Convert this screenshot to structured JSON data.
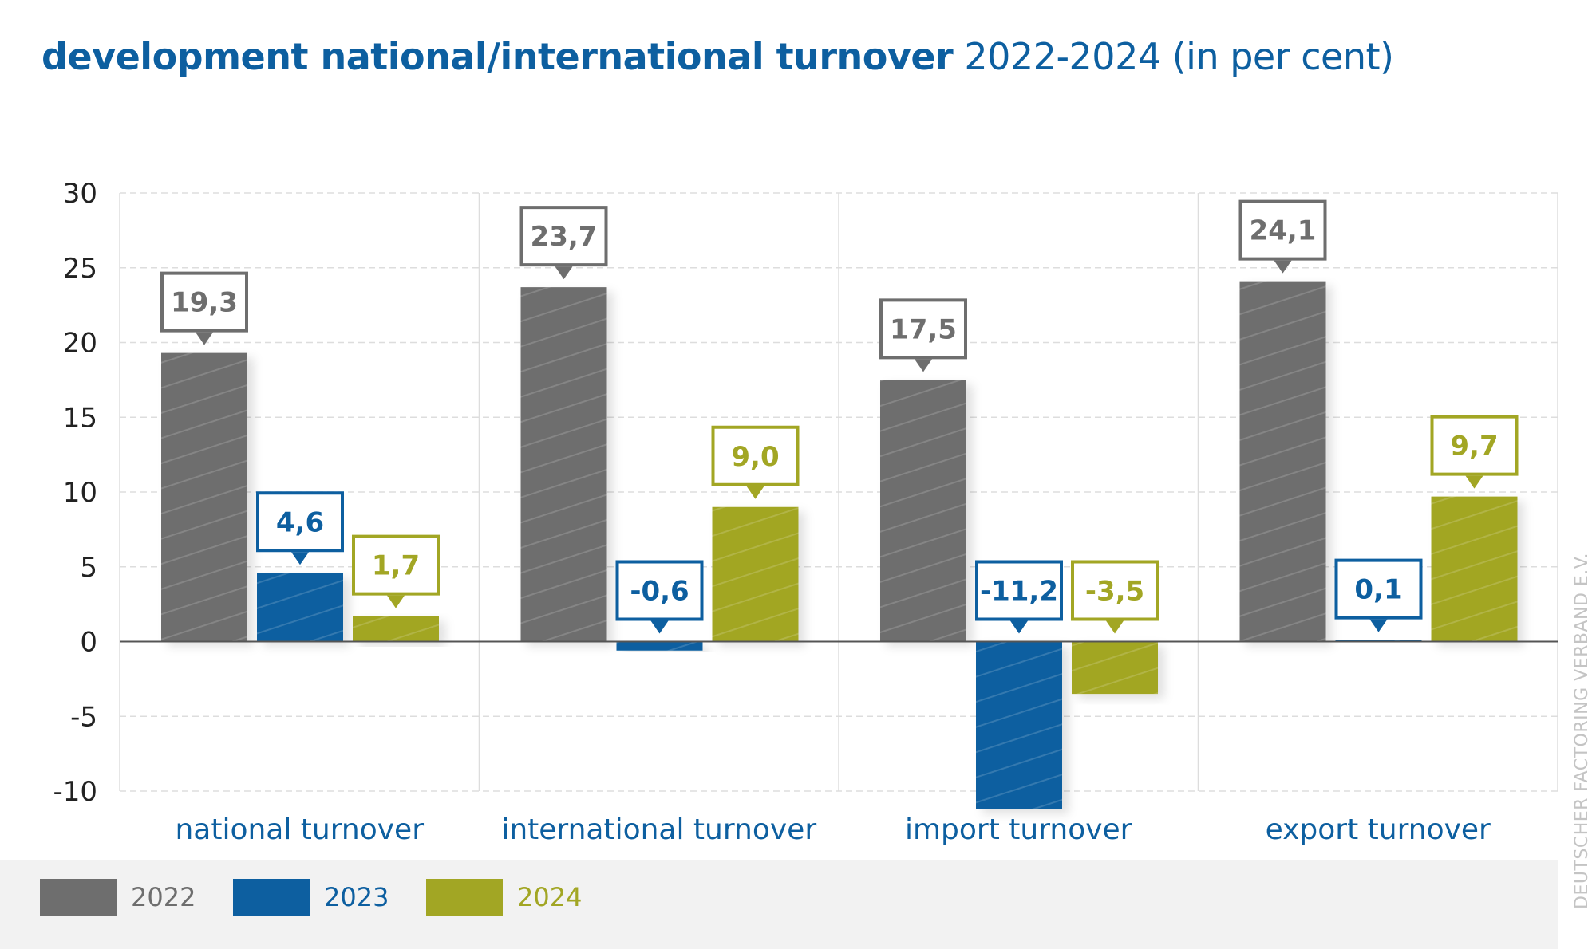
{
  "title": {
    "bold": "development national/international turnover",
    "regular": "2022-2024 (in per cent)"
  },
  "source": "DEUTSCHER FACTORING VERBAND E.V.",
  "colors": {
    "title": "#0d5fa0",
    "2022": "#6e6e6e",
    "2023": "#0d5fa0",
    "2024": "#a2a624",
    "category_label": "#0d5fa0",
    "grid": "#dddddd"
  },
  "chart_data": {
    "type": "bar",
    "categories": [
      "national turnover",
      "international turnover",
      "import turnover",
      "export turnover"
    ],
    "series": [
      {
        "name": "2022",
        "values": [
          19.3,
          23.7,
          17.5,
          24.1
        ],
        "labels": [
          "19,3",
          "23,7",
          "17,5",
          "24,1"
        ]
      },
      {
        "name": "2023",
        "values": [
          4.6,
          -0.6,
          -11.2,
          0.1
        ],
        "labels": [
          "4,6",
          "-0,6",
          "-11,2",
          "0,1"
        ]
      },
      {
        "name": "2024",
        "values": [
          1.7,
          9.0,
          -3.5,
          9.7
        ],
        "labels": [
          "1,7",
          "9,0",
          "-3,5",
          "9,7"
        ]
      }
    ],
    "ylim": [
      -10,
      30
    ],
    "yticks": [
      "30",
      "25",
      "20",
      "15",
      "10",
      "5",
      "0",
      "-5",
      "-10"
    ],
    "grid": true,
    "legend_position": "bottom-left",
    "title": "development national/international turnover 2022-2024 (in per cent)"
  }
}
